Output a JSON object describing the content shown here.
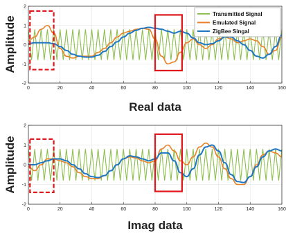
{
  "chart_data": [
    {
      "type": "line",
      "ylabel": "Amplitude",
      "xlabel": "Real data",
      "xlim": [
        0,
        160
      ],
      "ylim": [
        -2,
        2
      ],
      "xticks": [
        "0",
        "20",
        "40",
        "60",
        "80",
        "100",
        "120",
        "140",
        "160"
      ],
      "yticks": [
        "2",
        "1",
        "0",
        "-1",
        "-2"
      ],
      "grid": true,
      "legend_position": "top-right",
      "series": [
        {
          "name": "Transmitted Signal",
          "color": "#8cbf4d",
          "x": [
            0,
            2,
            4,
            6,
            8,
            10,
            12,
            14,
            16,
            18,
            20,
            22,
            24,
            26,
            28,
            30,
            32,
            34,
            36,
            38,
            40,
            42,
            44,
            46,
            48,
            50,
            52,
            54,
            56,
            58,
            60,
            62,
            64,
            66,
            68,
            70,
            72,
            74,
            76,
            78,
            80,
            82,
            84,
            86,
            88,
            90,
            92,
            94,
            96,
            98,
            100,
            102,
            104,
            106,
            108,
            110,
            112,
            114,
            116,
            118,
            120,
            122,
            124,
            126,
            128,
            130,
            132,
            134,
            136,
            138,
            140,
            142,
            144,
            146,
            148,
            150,
            152,
            154,
            156,
            158,
            160
          ],
          "y": [
            0.8,
            -0.8,
            0.8,
            -0.8,
            0.8,
            -0.8,
            0.8,
            -0.8,
            0.8,
            -0.8,
            0.8,
            -0.8,
            0.8,
            -0.8,
            0.8,
            -0.8,
            0.8,
            -0.8,
            0.8,
            -0.8,
            0.8,
            -0.8,
            0.8,
            -0.8,
            0.8,
            -0.8,
            0.8,
            -0.8,
            0.8,
            -0.8,
            0.8,
            -0.8,
            0.8,
            -0.8,
            0.8,
            -0.8,
            0.8,
            -0.8,
            0.8,
            -0.8,
            0.8,
            -0.8,
            0.8,
            -0.8,
            0.8,
            -0.8,
            0.8,
            -0.8,
            0.8,
            -0.8,
            0.8,
            -0.8,
            0.8,
            -0.8,
            0.8,
            -0.8,
            0.8,
            -0.8,
            0.8,
            -0.8,
            0.8,
            -0.8,
            0.8,
            -0.8,
            0.8,
            -0.8,
            0.8,
            -0.8,
            0.8,
            -0.8,
            0.8,
            -0.8,
            0.8,
            -0.8,
            0.8,
            -0.8,
            0.8,
            -0.8,
            0.8,
            -0.8,
            0.8
          ]
        },
        {
          "name": "Emulated Signal",
          "color": "#e8822a",
          "x": [
            0,
            4,
            8,
            12,
            16,
            20,
            24,
            28,
            32,
            36,
            40,
            44,
            48,
            52,
            56,
            60,
            64,
            68,
            72,
            76,
            80,
            84,
            88,
            92,
            96,
            100,
            104,
            108,
            112,
            116,
            120,
            124,
            128,
            132,
            136,
            140,
            144,
            148,
            152,
            156,
            160
          ],
          "y": [
            0.2,
            0.4,
            0.8,
            1.0,
            0.6,
            -0.2,
            -0.6,
            -0.7,
            -0.6,
            -0.6,
            -0.6,
            -0.4,
            -0.2,
            0.1,
            0.4,
            0.6,
            0.7,
            0.8,
            0.85,
            0.8,
            0.3,
            -0.6,
            -1.0,
            -0.9,
            -0.4,
            0.1,
            0.3,
            0.0,
            -0.2,
            0.0,
            0.3,
            0.4,
            0.3,
            0.1,
            0.2,
            0.3,
            0.2,
            -0.1,
            -0.5,
            -0.3,
            0.4
          ]
        },
        {
          "name": "ZigBee Singal",
          "color": "#1f77c4",
          "x": [
            0,
            4,
            8,
            12,
            16,
            20,
            24,
            28,
            32,
            36,
            40,
            44,
            48,
            52,
            56,
            60,
            64,
            68,
            72,
            76,
            80,
            84,
            88,
            92,
            96,
            100,
            104,
            108,
            112,
            116,
            120,
            124,
            128,
            132,
            136,
            140,
            144,
            148,
            152,
            156,
            160
          ],
          "y": [
            0.05,
            0.1,
            0.1,
            0.1,
            0.05,
            -0.1,
            -0.3,
            -0.5,
            -0.6,
            -0.65,
            -0.65,
            -0.55,
            -0.35,
            -0.1,
            0.15,
            0.4,
            0.6,
            0.75,
            0.85,
            0.9,
            0.85,
            0.8,
            0.7,
            0.6,
            0.7,
            0.6,
            0.35,
            0.1,
            0.0,
            0.05,
            0.2,
            0.4,
            0.4,
            0.2,
            0.0,
            -0.3,
            -0.6,
            -0.7,
            -0.5,
            -0.1,
            0.5
          ]
        }
      ]
    },
    {
      "type": "line",
      "ylabel": "Amplitude",
      "xlabel": "Imag data",
      "xlim": [
        0,
        160
      ],
      "ylim": [
        -2,
        2
      ],
      "xticks": [
        "0",
        "20",
        "40",
        "60",
        "80",
        "100",
        "120",
        "140",
        "160"
      ],
      "yticks": [
        "2",
        "1",
        "0",
        "-1",
        "-2"
      ],
      "grid": true,
      "series": [
        {
          "name": "Transmitted Signal",
          "color": "#8cbf4d",
          "x": [
            0,
            2,
            4,
            6,
            8,
            10,
            12,
            14,
            16,
            18,
            20,
            22,
            24,
            26,
            28,
            30,
            32,
            34,
            36,
            38,
            40,
            42,
            44,
            46,
            48,
            50,
            52,
            54,
            56,
            58,
            60,
            62,
            64,
            66,
            68,
            70,
            72,
            74,
            76,
            78,
            80,
            82,
            84,
            86,
            88,
            90,
            92,
            94,
            96,
            98,
            100,
            102,
            104,
            106,
            108,
            110,
            112,
            114,
            116,
            118,
            120,
            122,
            124,
            126,
            128,
            130,
            132,
            134,
            136,
            138,
            140,
            142,
            144,
            146,
            148,
            150,
            152,
            154,
            156,
            158,
            160
          ],
          "y": [
            0.8,
            -0.8,
            0.8,
            -0.8,
            0.8,
            -0.8,
            0.8,
            -0.8,
            0.8,
            -0.8,
            0.8,
            -0.8,
            0.8,
            -0.8,
            0.8,
            -0.8,
            0.8,
            -0.8,
            0.8,
            -0.8,
            0.8,
            -0.8,
            0.8,
            -0.8,
            0.8,
            -0.8,
            0.8,
            -0.8,
            0.8,
            -0.8,
            0.8,
            -0.8,
            0.8,
            -0.8,
            0.8,
            -0.8,
            0.8,
            -0.8,
            0.8,
            -0.8,
            0.8,
            -0.8,
            0.8,
            -0.8,
            0.8,
            -0.8,
            0.8,
            -0.8,
            0.8,
            -0.8,
            0.8,
            -0.8,
            0.8,
            -0.8,
            0.8,
            -0.8,
            0.8,
            -0.8,
            0.8,
            -0.8,
            0.8,
            -0.8,
            0.8,
            -0.8,
            0.8,
            -0.8,
            0.8,
            -0.8,
            0.8,
            -0.8,
            0.8,
            -0.8,
            0.8,
            -0.8,
            0.8,
            -0.8,
            0.8,
            -0.8,
            0.8,
            -0.8,
            0.8
          ]
        },
        {
          "name": "Emulated Signal",
          "color": "#e8822a",
          "x": [
            0,
            4,
            8,
            12,
            16,
            20,
            24,
            28,
            32,
            36,
            40,
            44,
            48,
            52,
            56,
            60,
            64,
            68,
            72,
            76,
            80,
            84,
            88,
            92,
            96,
            100,
            104,
            108,
            112,
            116,
            120,
            124,
            128,
            132,
            136,
            140,
            144,
            148,
            152,
            156,
            160
          ],
          "y": [
            -0.1,
            -0.3,
            0.0,
            0.3,
            0.3,
            0.2,
            0.1,
            -0.1,
            -0.4,
            -0.6,
            -0.7,
            -0.7,
            -0.55,
            -0.3,
            0.0,
            0.3,
            0.4,
            0.35,
            0.2,
            0.1,
            0.2,
            0.8,
            1.0,
            0.7,
            0.2,
            0.0,
            0.4,
            0.9,
            1.1,
            0.9,
            0.4,
            -0.2,
            -0.7,
            -1.0,
            -1.0,
            -0.6,
            0.0,
            0.5,
            0.7,
            0.6,
            0.4
          ]
        },
        {
          "name": "ZigBee Singal",
          "color": "#1f77c4",
          "x": [
            0,
            4,
            8,
            12,
            16,
            20,
            24,
            28,
            32,
            36,
            40,
            44,
            48,
            52,
            56,
            60,
            64,
            68,
            72,
            76,
            80,
            84,
            88,
            92,
            96,
            100,
            104,
            108,
            112,
            116,
            120,
            124,
            128,
            132,
            136,
            140,
            144,
            148,
            152,
            156,
            160
          ],
          "y": [
            0.0,
            0.0,
            0.1,
            0.2,
            0.3,
            0.3,
            0.2,
            0.0,
            -0.2,
            -0.45,
            -0.6,
            -0.65,
            -0.55,
            -0.3,
            0.0,
            0.3,
            0.45,
            0.4,
            0.3,
            0.2,
            0.3,
            0.6,
            0.6,
            0.2,
            -0.4,
            -0.6,
            -0.2,
            0.5,
            0.9,
            1.0,
            0.7,
            0.1,
            -0.5,
            -0.85,
            -0.9,
            -0.6,
            -0.1,
            0.4,
            0.7,
            0.8,
            0.7
          ]
        }
      ]
    }
  ]
}
